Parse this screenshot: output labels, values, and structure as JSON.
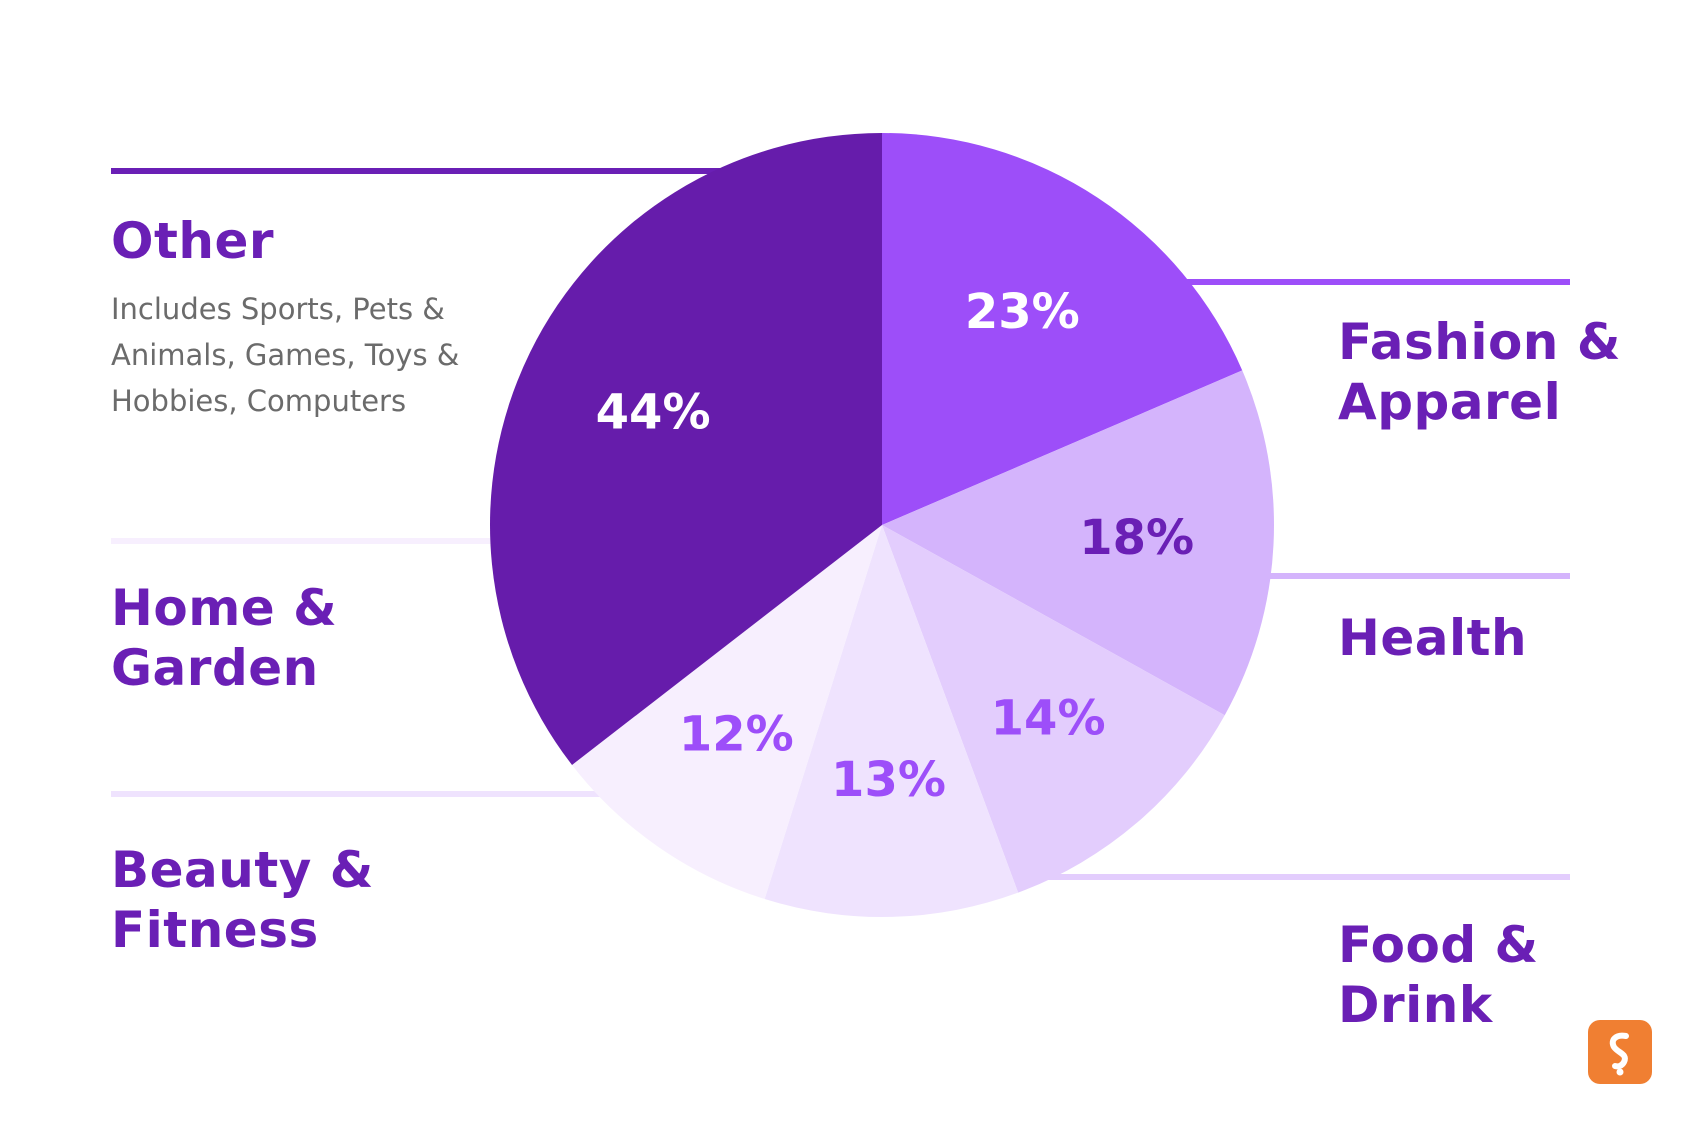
{
  "chart_data": {
    "type": "pie",
    "title": "",
    "slices": [
      {
        "name": "Fashion & Apparel",
        "lines": [
          "Fashion &",
          "Apparel"
        ],
        "value": 23,
        "label": "23%",
        "color": "#9d4ef9",
        "label_color": "#ffffff"
      },
      {
        "name": "Health",
        "lines": [
          "Health"
        ],
        "value": 18,
        "label": "18%",
        "color": "#d4b4fc",
        "label_color": "#6a1fb5"
      },
      {
        "name": "Food & Drink",
        "lines": [
          "Food  &",
          "Drink"
        ],
        "value": 14,
        "label": "14%",
        "color": "#e3cdfd",
        "label_color": "#9d4ef9"
      },
      {
        "name": "Beauty & Fitness",
        "lines": [
          "Beauty &",
          "Fitness"
        ],
        "value": 13,
        "label": "13%",
        "color": "#efe3fe",
        "label_color": "#9d4ef9"
      },
      {
        "name": "Home & Garden",
        "lines": [
          "Home &",
          "Garden"
        ],
        "value": 12,
        "label": "12%",
        "color": "#f7effe",
        "label_color": "#9d4ef9"
      },
      {
        "name": "Other",
        "lines": [
          "Other"
        ],
        "value": 44,
        "label": "44%",
        "color": "#661cab",
        "label_color": "#ffffff",
        "note": [
          "Includes Sports, Pets &",
          "Animals, Games, Toys &",
          "Hobbies, Computers"
        ]
      }
    ]
  },
  "colors": {
    "text": "#6a1fb5",
    "note": "#6b6b6b",
    "logo": "#f07f32"
  },
  "logo": {
    "icon": "brand-logo-icon"
  }
}
